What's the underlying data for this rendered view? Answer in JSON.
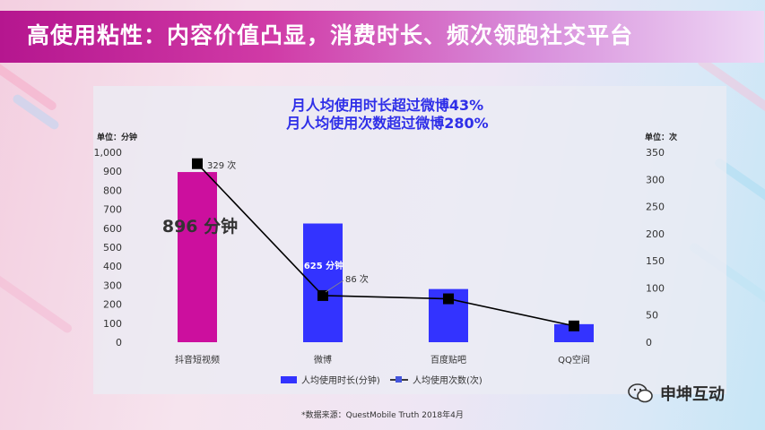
{
  "banner": {
    "title": "高使用粘性：内容价值凸显，消费时长、频次领跑社交平台"
  },
  "chart_data": {
    "type": "bar",
    "subtitle_lines": [
      "月人均使用时长超过微博43%",
      "月人均使用次数超过微博280%"
    ],
    "categories": [
      "抖音短视频",
      "微博",
      "百度贴吧",
      "QQ空间"
    ],
    "series": [
      {
        "name": "人均使用时长(分钟)",
        "type": "bar",
        "axis": "left",
        "values": [
          896,
          625,
          280,
          95
        ],
        "colors": [
          "#cc0f9e",
          "#3333ff",
          "#3333ff",
          "#3333ff"
        ]
      },
      {
        "name": "人均使用次数(次)",
        "type": "line",
        "axis": "right",
        "values": [
          329,
          86,
          80,
          30
        ],
        "color": "#000000"
      }
    ],
    "left_axis": {
      "unit_label": "单位：分钟",
      "ylim": [
        0,
        1000
      ],
      "ticks": [
        0,
        100,
        200,
        300,
        400,
        500,
        600,
        700,
        800,
        900,
        1000
      ],
      "tick_labels": [
        "0",
        "100",
        "200",
        "300",
        "400",
        "500",
        "600",
        "700",
        "800",
        "900",
        "1,000"
      ]
    },
    "right_axis": {
      "unit_label": "单位：次",
      "ylim": [
        0,
        350
      ],
      "ticks": [
        0,
        50,
        100,
        150,
        200,
        250,
        300,
        350
      ],
      "tick_labels": [
        "0",
        "50",
        "100",
        "150",
        "200",
        "250",
        "300",
        "350"
      ]
    },
    "annotations": {
      "bar_big": "896 分钟",
      "bar_weibo": "625 分钟",
      "line_douyin": "329 次",
      "line_weibo": "86 次"
    },
    "legend": {
      "position": "bottom"
    }
  },
  "source": "*数据来源：QuestMobile Truth 2018年4月",
  "brand": {
    "name": "申坤互动",
    "icon": "wechat-icon"
  }
}
